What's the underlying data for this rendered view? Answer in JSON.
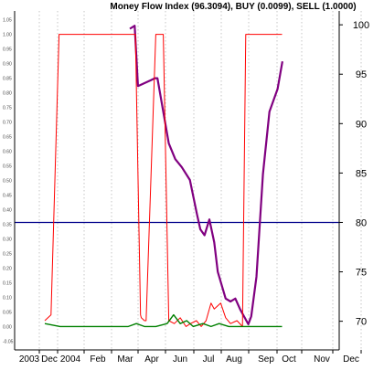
{
  "chart_data": {
    "type": "line",
    "title": "Money Flow Index (96.3094), BUY (0.0099), SELL (1.0000)",
    "x_labels": [
      "2003",
      "Dec",
      "2004",
      "Feb",
      "Mar",
      "Apr",
      "Jun",
      "Jul",
      "Aug",
      "Sep",
      "Oct",
      "Nov",
      "Dec"
    ],
    "left_axis": {
      "ticks": [
        "1.05",
        "1.00",
        "0.95",
        "0.90",
        "0.85",
        "0.80",
        "0.75",
        "0.70",
        "0.65",
        "0.60",
        "0.55",
        "0.50",
        "0.45",
        "0.40",
        "0.35",
        "0.30",
        "0.25",
        "0.20",
        "0.15",
        "0.10",
        "0.05",
        "0.00",
        "-0.05"
      ],
      "ylim": [
        -0.08,
        1.08
      ]
    },
    "right_axis": {
      "ticks": [
        "100",
        "95",
        "90",
        "85",
        "80",
        "75",
        "70"
      ],
      "ylim": [
        67.1,
        101.4
      ]
    },
    "reference_line": {
      "axis": "right",
      "value": 80,
      "color": "#00008b"
    },
    "x_range": [
      0,
      100
    ],
    "series": [
      {
        "axis": "right",
        "color": "#800080",
        "width": 2.2,
        "x": [
          35.5,
          37.0,
          38.0,
          42.0,
          43.2,
          44.0,
          47.5,
          49.5,
          51.5,
          54.0,
          56.2,
          57.2,
          58.5,
          60.0,
          61.5,
          62.6,
          65.0,
          66.5,
          68.0,
          69.5,
          72.0,
          72.9,
          74.5,
          76.5,
          78.5,
          81.0,
          82.5
        ],
        "y": [
          99.6,
          99.9,
          93.8,
          94.4,
          94.6,
          94.6,
          88.0,
          86.4,
          85.6,
          84.3,
          80.8,
          79.3,
          78.7,
          80.3,
          78.0,
          75.0,
          72.3,
          72.0,
          72.3,
          71.2,
          69.7,
          70.5,
          74.5,
          84.9,
          91.2,
          93.5,
          96.3
        ]
      },
      {
        "axis": "left",
        "color": "#ff0000",
        "width": 1.0,
        "x": [
          9.3,
          11.2,
          13.7,
          29.8,
          34.0,
          35.2,
          36.5,
          37.2,
          38.8,
          39.0,
          40.0,
          40.5,
          43.5,
          45.8,
          47.5,
          49.2,
          51.0,
          52.8,
          54.2,
          56.0,
          57.5,
          59.0,
          60.5,
          61.5,
          63.5,
          65.0,
          66.5,
          68.5,
          70.2,
          71.2,
          72.2,
          74.0,
          81.0,
          82.4
        ],
        "y": [
          0.02,
          0.04,
          1.0,
          1.0,
          1.0,
          1.0,
          1.0,
          1.0,
          0.04,
          0.03,
          0.02,
          0.02,
          1.0,
          1.0,
          0.02,
          0.01,
          0.03,
          0.0,
          0.01,
          0.02,
          0.0,
          0.02,
          0.08,
          0.06,
          0.08,
          0.03,
          0.01,
          0.02,
          0.0,
          1.0,
          1.0,
          1.0,
          1.0,
          1.0
        ]
      },
      {
        "axis": "left",
        "color": "#008000",
        "width": 1.4,
        "x": [
          9.3,
          14.0,
          22.0,
          30.0,
          35.0,
          37.5,
          40.0,
          43.5,
          47.0,
          49.0,
          51.0,
          53.0,
          55.0,
          58.0,
          60.5,
          63.0,
          66.0,
          69.0,
          71.0,
          73.0,
          82.4
        ],
        "y": [
          0.01,
          0.0,
          0.0,
          0.0,
          0.0,
          0.01,
          0.0,
          0.0,
          0.01,
          0.04,
          0.01,
          0.02,
          0.0,
          0.01,
          0.0,
          0.01,
          0.0,
          0.0,
          0.0,
          0.0,
          0.0
        ]
      }
    ]
  }
}
